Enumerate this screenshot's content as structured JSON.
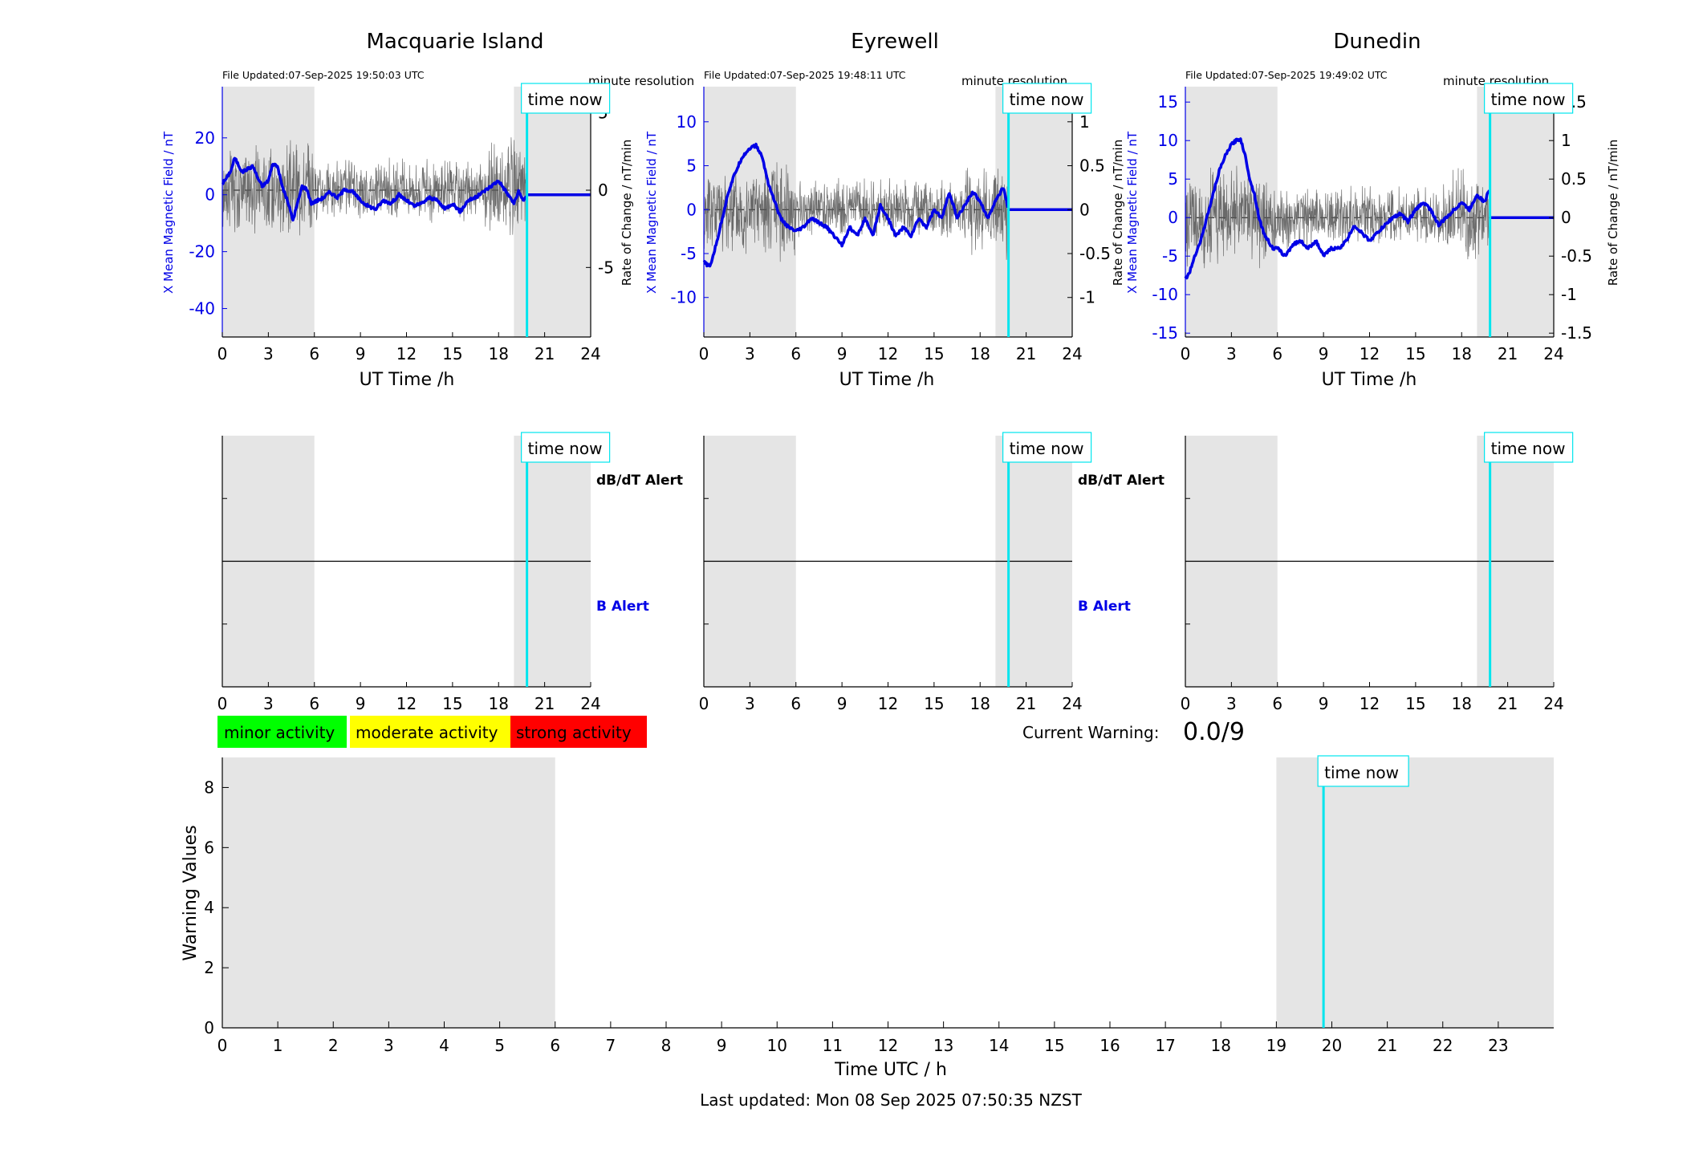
{
  "colors": {
    "mean_line": "#0000e6",
    "rate_line": "#555555",
    "time_now": "#00e5ee",
    "shade": "#e5e5e5",
    "minor": "#00ff00",
    "moderate": "#ffff00",
    "strong": "#ff0000"
  },
  "panels": [
    {
      "station": "Macquarie Island",
      "file_updated": "File Updated:07-Sep-2025 19:50:03 UTC",
      "resolution": "minute resolution",
      "time_now_label": "time now",
      "left_axis_label": "X Mean Magnetic Field / nT",
      "right_axis_label": "Rate of Change / nT/min",
      "x_label": "UT Time /h",
      "x_ticks": [
        "0",
        "3",
        "6",
        "9",
        "12",
        "15",
        "18",
        "21",
        "24"
      ],
      "left_ticks": [
        {
          "v": 20,
          "t": "20"
        },
        {
          "v": 0,
          "t": "0"
        },
        {
          "v": -20,
          "t": "-20"
        },
        {
          "v": -40,
          "t": "-40"
        }
      ],
      "right_ticks": [
        {
          "v": 5,
          "t": "5"
        },
        {
          "v": 0,
          "t": "0"
        },
        {
          "v": -5,
          "t": "-5"
        }
      ],
      "alert_labels": {
        "dbdt": "dB/dT Alert",
        "b": "B Alert"
      }
    },
    {
      "station": "Eyrewell",
      "file_updated": "File Updated:07-Sep-2025 19:48:11 UTC",
      "resolution": "minute resolution",
      "time_now_label": "time now",
      "left_axis_label": "X Mean Magnetic Field / nT",
      "right_axis_label": "Rate of Change / nT/min",
      "x_label": "UT Time /h",
      "x_ticks": [
        "0",
        "3",
        "6",
        "9",
        "12",
        "15",
        "18",
        "21",
        "24"
      ],
      "left_ticks": [
        {
          "v": 10,
          "t": "10"
        },
        {
          "v": 5,
          "t": "5"
        },
        {
          "v": 0,
          "t": "0"
        },
        {
          "v": -5,
          "t": "-5"
        },
        {
          "v": -10,
          "t": "-10"
        }
      ],
      "right_ticks": [
        {
          "v": 1,
          "t": "1"
        },
        {
          "v": 0.5,
          "t": "0.5"
        },
        {
          "v": 0,
          "t": "0"
        },
        {
          "v": -0.5,
          "t": "-0.5"
        },
        {
          "v": -1,
          "t": "-1"
        }
      ],
      "alert_labels": {
        "dbdt": "dB/dT Alert",
        "b": "B Alert"
      }
    },
    {
      "station": "Dunedin",
      "file_updated": "File Updated:07-Sep-2025 19:49:02 UTC",
      "resolution": "minute resolution",
      "time_now_label": "time now",
      "left_axis_label": "X Mean Magnetic Field / nT",
      "right_axis_label": "Rate of Change / nT/min",
      "x_label": "UT Time /h",
      "x_ticks": [
        "0",
        "3",
        "6",
        "9",
        "12",
        "15",
        "18",
        "21",
        "24"
      ],
      "left_ticks": [
        {
          "v": 15,
          "t": "15"
        },
        {
          "v": 10,
          "t": "10"
        },
        {
          "v": 5,
          "t": "5"
        },
        {
          "v": 0,
          "t": "0"
        },
        {
          "v": -5,
          "t": "-5"
        },
        {
          "v": -10,
          "t": "-10"
        },
        {
          "v": -15,
          "t": "-15"
        }
      ],
      "right_ticks": [
        {
          "v": 1.5,
          "t": "1.5"
        },
        {
          "v": 1,
          "t": "1"
        },
        {
          "v": 0.5,
          "t": "0.5"
        },
        {
          "v": 0,
          "t": "0"
        },
        {
          "v": -0.5,
          "t": "-0.5"
        },
        {
          "v": -1,
          "t": "-1"
        },
        {
          "v": -1.5,
          "t": "-1.5"
        }
      ],
      "alert_labels": {
        "dbdt": "",
        "b": ""
      }
    }
  ],
  "legend": {
    "minor": "minor activity",
    "moderate": "moderate activity",
    "strong": "strong activity"
  },
  "current_warning": {
    "label": "Current Warning:",
    "value": "0.0/9"
  },
  "warning_chart": {
    "ylabel": "Warning Values",
    "xlabel": "Time UTC / h",
    "time_now_label": "time now",
    "x_ticks": [
      "0",
      "1",
      "2",
      "3",
      "4",
      "5",
      "6",
      "7",
      "8",
      "9",
      "10",
      "11",
      "12",
      "13",
      "14",
      "15",
      "16",
      "17",
      "18",
      "19",
      "20",
      "21",
      "22",
      "23"
    ],
    "y_ticks": [
      "0",
      "2",
      "4",
      "6",
      "8"
    ]
  },
  "footer": "Last updated: Mon 08 Sep 2025 07:50:35 NZST",
  "chart_data": [
    {
      "type": "line",
      "title": "Macquarie Island",
      "xlabel": "UT Time /h",
      "ylabel": "X Mean Magnetic Field / nT",
      "y2label": "Rate of Change / nT/min",
      "xlim": [
        0,
        24
      ],
      "ylim": [
        -50,
        38
      ],
      "y2lim": [
        -9.5,
        6.7
      ],
      "shaded_x": [
        [
          0,
          6
        ],
        [
          19,
          24
        ]
      ],
      "time_now": 19.85,
      "series": [
        {
          "axis": "left",
          "x": [
            0,
            0.3,
            0.6,
            0.8,
            1,
            1.3,
            1.6,
            2,
            2.3,
            2.6,
            3,
            3.3,
            3.6,
            3.9,
            4.3,
            4.6,
            4.9,
            5.2,
            5.5,
            5.8,
            6.2,
            6.6,
            7,
            7.5,
            8,
            8.5,
            9,
            9.5,
            10,
            10.5,
            11,
            11.5,
            12,
            12.5,
            13,
            13.5,
            14,
            14.5,
            15,
            15.5,
            16,
            16.5,
            17,
            17.5,
            18,
            18.5,
            19,
            19.3,
            19.6,
            19.85,
            24
          ],
          "y": [
            4,
            6,
            9,
            13,
            11,
            8,
            9,
            10,
            6,
            3,
            5,
            11,
            10,
            3,
            -3,
            -9,
            -3,
            3,
            2,
            -3,
            -2,
            -1,
            1,
            -1,
            2,
            1,
            -2,
            -4,
            -5,
            -2,
            -3,
            0,
            -2,
            -4,
            -3,
            -1,
            -2,
            -5,
            -3,
            -6,
            -2,
            -1,
            1,
            3,
            5,
            1,
            -3,
            1,
            -2,
            0,
            0
          ]
        }
      ]
    },
    {
      "type": "line",
      "title": "Eyrewell",
      "xlabel": "UT Time /h",
      "ylabel": "X Mean Magnetic Field / nT",
      "y2label": "Rate of Change / nT/min",
      "xlim": [
        0,
        24
      ],
      "ylim": [
        -14.5,
        14
      ],
      "y2lim": [
        -1.45,
        1.4
      ],
      "shaded_x": [
        [
          0,
          6
        ],
        [
          19,
          24
        ]
      ],
      "time_now": 19.85,
      "series": [
        {
          "axis": "left",
          "x": [
            0,
            0.4,
            0.8,
            1.2,
            1.6,
            2,
            2.5,
            3,
            3.4,
            3.8,
            4.2,
            4.6,
            5,
            5.5,
            6,
            6.5,
            7,
            7.5,
            8,
            8.5,
            9,
            9.5,
            10,
            10.5,
            11,
            11.5,
            12,
            12.5,
            13,
            13.5,
            14,
            14.5,
            15,
            15.5,
            16,
            16.5,
            17,
            17.5,
            18,
            18.5,
            19,
            19.5,
            19.85,
            24
          ],
          "y": [
            -6,
            -6.5,
            -4,
            -1,
            2,
            4,
            6,
            7,
            7.3,
            6,
            3,
            1,
            -1,
            -2,
            -2.5,
            -2,
            -1,
            -1.5,
            -2,
            -3,
            -4,
            -2,
            -3,
            -1,
            -3,
            0.5,
            -1,
            -3,
            -2,
            -3,
            -1,
            -2,
            0,
            -1,
            2,
            -1,
            0.5,
            2,
            1,
            -1,
            1,
            2.5,
            0,
            0
          ]
        }
      ]
    },
    {
      "type": "line",
      "title": "Dunedin",
      "xlabel": "UT Time /h",
      "ylabel": "X Mean Magnetic Field / nT",
      "y2label": "Rate of Change / nT/min",
      "xlim": [
        0,
        24
      ],
      "ylim": [
        -15.5,
        17
      ],
      "y2lim": [
        -1.55,
        1.7
      ],
      "shaded_x": [
        [
          0,
          6
        ],
        [
          19,
          24
        ]
      ],
      "time_now": 19.85,
      "series": [
        {
          "axis": "left",
          "x": [
            0,
            0.3,
            0.6,
            1,
            1.4,
            1.8,
            2.2,
            2.6,
            3,
            3.3,
            3.6,
            3.9,
            4.2,
            4.5,
            4.8,
            5.1,
            5.4,
            5.7,
            6,
            6.5,
            7,
            7.5,
            8,
            8.5,
            9,
            9.5,
            10,
            10.5,
            11,
            11.5,
            12,
            12.5,
            13,
            13.5,
            14,
            14.5,
            15,
            15.5,
            16,
            16.5,
            17,
            17.5,
            18,
            18.5,
            19,
            19.5,
            19.85,
            24
          ],
          "y": [
            -8,
            -7,
            -5,
            -3,
            0,
            3,
            6,
            8,
            9.5,
            10,
            10.2,
            8,
            5,
            3,
            0,
            -2,
            -3,
            -4,
            -4,
            -5,
            -3.5,
            -3,
            -4,
            -3,
            -5,
            -4,
            -4,
            -3,
            -1,
            -2,
            -3,
            -2,
            -1,
            0,
            0.5,
            -0.5,
            1,
            2,
            1,
            -1,
            0,
            1,
            2,
            1,
            3,
            2,
            4,
            0
          ]
        }
      ]
    },
    {
      "type": "line",
      "title": "",
      "xlabel": "Time UTC / h",
      "ylabel": "Warning Values",
      "xlim": [
        0,
        24
      ],
      "ylim": [
        0,
        9
      ],
      "shaded_x": [
        [
          0,
          6
        ],
        [
          19,
          24
        ]
      ],
      "time_now": 19.85,
      "series": []
    }
  ]
}
